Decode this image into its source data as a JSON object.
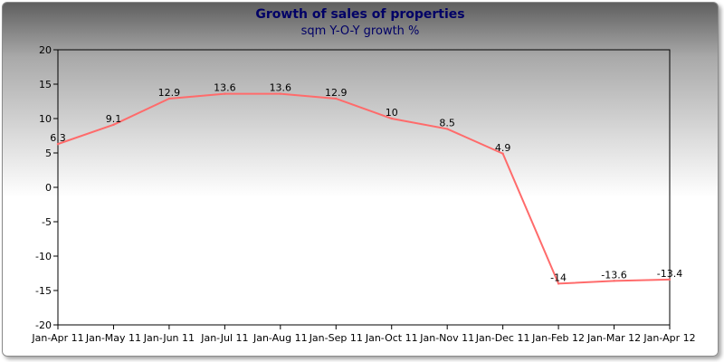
{
  "chart_data": {
    "type": "line",
    "title": "Growth of sales of properties",
    "subtitle": "sqm Y-O-Y growth %",
    "xlabel": "",
    "ylabel": "",
    "categories": [
      "Jan-Apr 11",
      "Jan-May 11",
      "Jan-Jun 11",
      "Jan-Jul 11",
      "Jan-Aug 11",
      "Jan-Sep 11",
      "Jan-Oct 11",
      "Jan-Nov 11",
      "Jan-Dec 11",
      "Jan-Feb 12",
      "Jan-Mar 12",
      "Jan-Apr 12"
    ],
    "series": [
      {
        "values": [
          6.3,
          9.1,
          12.9,
          13.6,
          13.6,
          12.9,
          10,
          8.5,
          4.9,
          -14,
          -13.6,
          -13.4
        ],
        "color": "#ff6b6b"
      }
    ],
    "data_labels": [
      "6.3",
      "9.1",
      "12.9",
      "13.6",
      "13.6",
      "12.9",
      "10",
      "8.5",
      "4.9",
      "-14",
      "-13.6",
      "-13.4"
    ],
    "yticks": [
      20,
      15,
      10,
      5,
      0,
      -5,
      -10,
      -15,
      -20
    ],
    "ytick_labels": [
      "20",
      "15",
      "10",
      "5",
      "0",
      "-5",
      "-10",
      "-15",
      "-20"
    ],
    "ylim": [
      -20,
      20
    ],
    "grid": false,
    "legend": "none",
    "colors": {
      "title": "#000066",
      "line": "#ff6b6b",
      "axis": "#000000"
    }
  }
}
